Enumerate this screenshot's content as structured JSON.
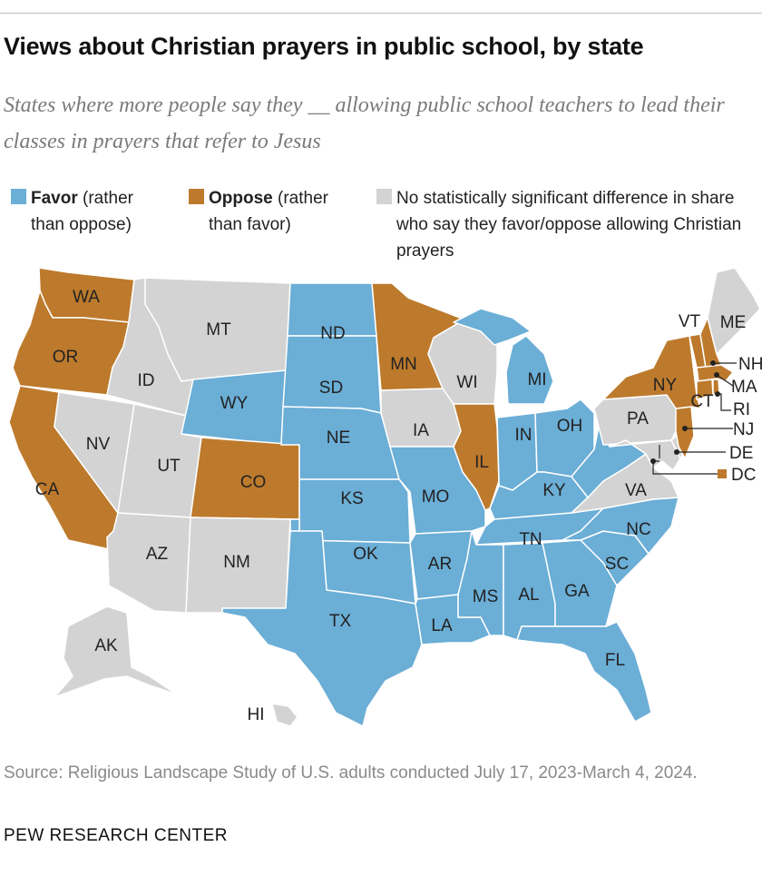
{
  "title": "Views about Christian prayers in public school, by state",
  "subtitle": "States where more people say they __ allowing public school teachers to lead their classes in prayers that refer to Jesus",
  "legend": {
    "favor": {
      "bold": "Favor",
      "rest": " (rather than oppose)",
      "color": "#6baed6"
    },
    "oppose": {
      "bold": "Oppose",
      "rest": " (rather than favor)",
      "color": "#bd7a2c"
    },
    "none": {
      "text": "No statistically significant difference in share who say they favor/oppose allowing Christian prayers",
      "color": "#d3d3d3"
    }
  },
  "colors": {
    "favor": "#6baed6",
    "oppose": "#bd7a2c",
    "none": "#d3d3d3"
  },
  "states": {
    "WA": "oppose",
    "OR": "oppose",
    "CA": "oppose",
    "ID": "none",
    "NV": "none",
    "UT": "none",
    "AZ": "none",
    "MT": "none",
    "WY": "favor",
    "CO": "oppose",
    "NM": "none",
    "ND": "favor",
    "SD": "favor",
    "NE": "favor",
    "KS": "favor",
    "OK": "favor",
    "TX": "favor",
    "MN": "oppose",
    "IA": "none",
    "MO": "favor",
    "AR": "favor",
    "LA": "favor",
    "WI": "none",
    "IL": "oppose",
    "MI": "favor",
    "IN": "favor",
    "OH": "favor",
    "KY": "favor",
    "TN": "favor",
    "MS": "favor",
    "AL": "favor",
    "GA": "favor",
    "FL": "favor",
    "SC": "favor",
    "NC": "favor",
    "VA": "none",
    "WV": "favor",
    "PA": "none",
    "NY": "oppose",
    "VT": "oppose",
    "NH": "oppose",
    "ME": "none",
    "MA": "oppose",
    "RI": "oppose",
    "CT": "oppose",
    "NJ": "oppose",
    "DE": "none",
    "MD": "none",
    "DC": "oppose",
    "AK": "none",
    "HI": "none"
  },
  "source": "Source: Religious Landscape Study of U.S. adults conducted July 17, 2023-March 4, 2024.",
  "brand": "PEW RESEARCH CENTER"
}
